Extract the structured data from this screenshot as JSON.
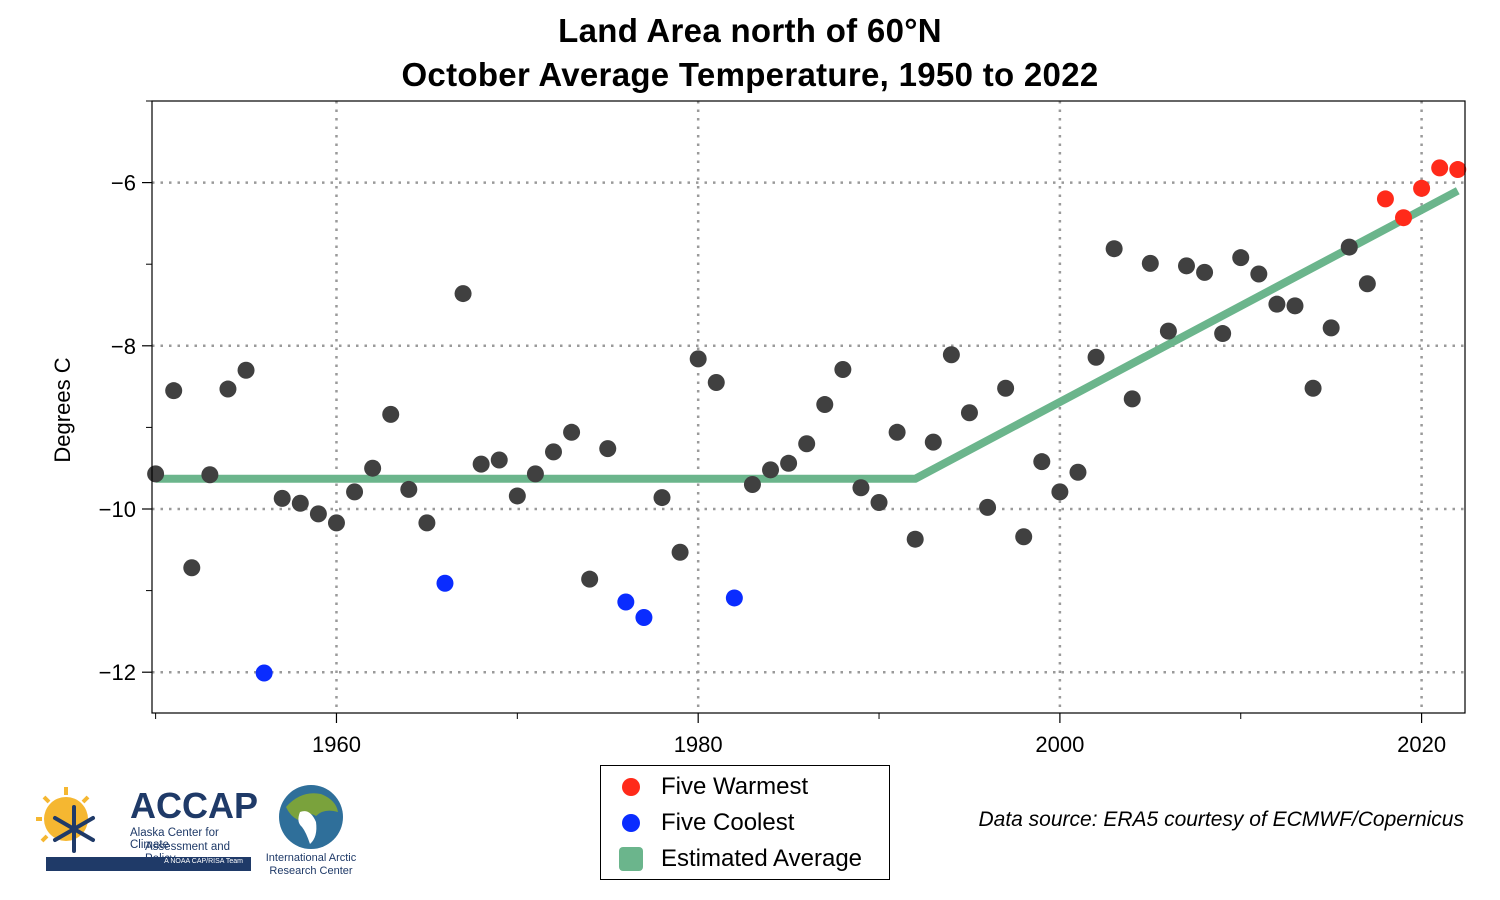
{
  "title_line1": "Land Area north of 60°N",
  "title_line2": "October Average Temperature, 1950 to 2022",
  "chart_data": {
    "type": "scatter",
    "title": "Land Area north of 60°N October Average Temperature, 1950 to 2022",
    "xlabel": "",
    "ylabel": "Degrees C",
    "xlim": [
      1949.8,
      2022.4
    ],
    "ylim": [
      -12.5,
      -5.0
    ],
    "x_ticks": [
      1960,
      1980,
      2000,
      2020
    ],
    "y_ticks": [
      -12,
      -10,
      -8,
      -6
    ],
    "x_tick_labels": [
      "1960",
      "1980",
      "2000",
      "2020"
    ],
    "y_tick_labels": [
      "−12",
      "−10",
      "−8",
      "−6"
    ],
    "grid": "dotted",
    "legend_position": "bottom-center",
    "colors": {
      "normal": "#404040",
      "warm": "#ff2a1a",
      "cool": "#0a2cff",
      "trend": "#6bb58c"
    },
    "series": [
      {
        "name": "",
        "color": "#404040",
        "points": [
          [
            1950,
            -9.57
          ],
          [
            1951,
            -8.55
          ],
          [
            1952,
            -10.72
          ],
          [
            1953,
            -9.58
          ],
          [
            1954,
            -8.53
          ],
          [
            1955,
            -8.3
          ],
          [
            1957,
            -9.87
          ],
          [
            1958,
            -9.93
          ],
          [
            1959,
            -10.06
          ],
          [
            1960,
            -10.17
          ],
          [
            1961,
            -9.79
          ],
          [
            1962,
            -9.5
          ],
          [
            1963,
            -8.84
          ],
          [
            1964,
            -9.76
          ],
          [
            1965,
            -10.17
          ],
          [
            1967,
            -7.36
          ],
          [
            1968,
            -9.45
          ],
          [
            1969,
            -9.4
          ],
          [
            1970,
            -9.84
          ],
          [
            1971,
            -9.57
          ],
          [
            1972,
            -9.3
          ],
          [
            1973,
            -9.06
          ],
          [
            1974,
            -10.86
          ],
          [
            1975,
            -9.26
          ],
          [
            1978,
            -9.86
          ],
          [
            1979,
            -10.53
          ],
          [
            1980,
            -8.16
          ],
          [
            1981,
            -8.45
          ],
          [
            1983,
            -9.7
          ],
          [
            1984,
            -9.52
          ],
          [
            1985,
            -9.44
          ],
          [
            1986,
            -9.2
          ],
          [
            1987,
            -8.72
          ],
          [
            1988,
            -8.29
          ],
          [
            1989,
            -9.74
          ],
          [
            1990,
            -9.92
          ],
          [
            1991,
            -9.06
          ],
          [
            1992,
            -10.37
          ],
          [
            1993,
            -9.18
          ],
          [
            1994,
            -8.11
          ],
          [
            1995,
            -8.82
          ],
          [
            1996,
            -9.98
          ],
          [
            1997,
            -8.52
          ],
          [
            1998,
            -10.34
          ],
          [
            1999,
            -9.42
          ],
          [
            2000,
            -9.79
          ],
          [
            2001,
            -9.55
          ],
          [
            2002,
            -8.14
          ],
          [
            2003,
            -6.81
          ],
          [
            2004,
            -8.65
          ],
          [
            2005,
            -6.99
          ],
          [
            2006,
            -7.82
          ],
          [
            2007,
            -7.02
          ],
          [
            2008,
            -7.1
          ],
          [
            2009,
            -7.85
          ],
          [
            2010,
            -6.92
          ],
          [
            2011,
            -7.12
          ],
          [
            2012,
            -7.49
          ],
          [
            2013,
            -7.51
          ],
          [
            2014,
            -8.52
          ],
          [
            2015,
            -7.78
          ],
          [
            2016,
            -6.79
          ],
          [
            2017,
            -7.24
          ]
        ]
      },
      {
        "name": "Five Warmest",
        "color": "#ff2a1a",
        "points": [
          [
            2018,
            -6.2
          ],
          [
            2019,
            -6.43
          ],
          [
            2020,
            -6.07
          ],
          [
            2021,
            -5.82
          ],
          [
            2022,
            -5.84
          ]
        ]
      },
      {
        "name": "Five Coolest",
        "color": "#0a2cff",
        "points": [
          [
            1956,
            -12.01
          ],
          [
            1966,
            -10.91
          ],
          [
            1976,
            -11.14
          ],
          [
            1977,
            -11.33
          ],
          [
            1982,
            -11.09
          ]
        ]
      },
      {
        "name": "Estimated Average",
        "color": "#6bb58c",
        "line": [
          [
            1950,
            -9.63
          ],
          [
            1992,
            -9.63
          ],
          [
            2022,
            -6.1
          ]
        ]
      }
    ]
  },
  "legend": {
    "items": [
      {
        "label": "Five Warmest",
        "color": "#ff2a1a",
        "marker": "dot"
      },
      {
        "label": "Five Coolest",
        "color": "#0a2cff",
        "marker": "dot"
      },
      {
        "label": "Estimated Average",
        "color": "#6bb58c",
        "marker": "square"
      }
    ]
  },
  "source": "Data source: ERA5 courtesy of ECMWF/Copernicus",
  "logos": {
    "accap": {
      "name": "ACCAP",
      "subtitle_line1": "Alaska Center for Climate",
      "subtitle_line2": "Assessment and Policy",
      "tagline": "A NOAA CAP/RISA Team"
    },
    "iarc": {
      "line1": "International Arctic",
      "line2": "Research Center"
    }
  }
}
